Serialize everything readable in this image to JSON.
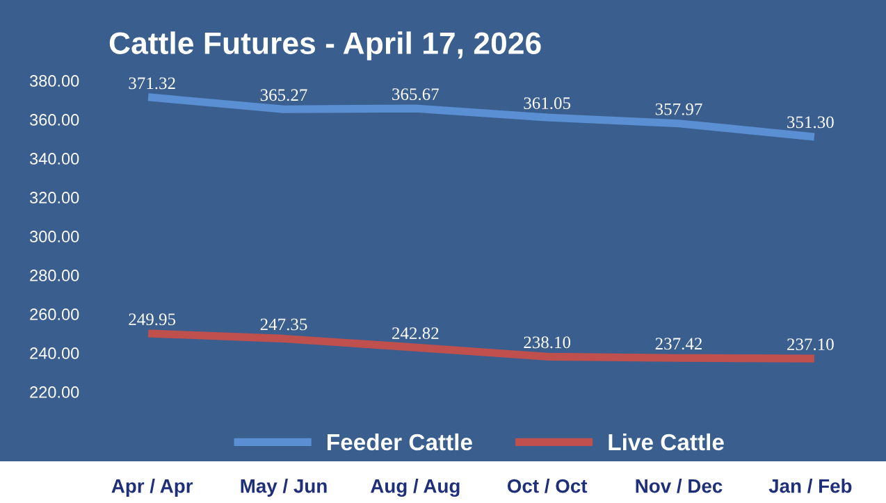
{
  "chart_data": {
    "type": "line",
    "title": "Cattle Futures - April 17, 2026",
    "categories": [
      "Apr / Apr",
      "May / Jun",
      "Aug / Aug",
      "Oct / Oct",
      "Nov / Dec",
      "Jan / Feb"
    ],
    "series": [
      {
        "name": "Feeder Cattle",
        "color": "#5b8fd3",
        "values": [
          371.32,
          365.27,
          365.67,
          361.05,
          357.97,
          351.3
        ],
        "value_labels": [
          "371.32",
          "365.27",
          "365.67",
          "361.05",
          "357.97",
          "351.30"
        ]
      },
      {
        "name": "Live Cattle",
        "color": "#c0504d",
        "values": [
          249.95,
          247.35,
          242.82,
          238.1,
          237.42,
          237.1
        ],
        "value_labels": [
          "249.95",
          "247.35",
          "242.82",
          "238.10",
          "237.42",
          "237.10"
        ]
      }
    ],
    "ylim": [
      220,
      380
    ],
    "yticks": [
      {
        "value": 220,
        "label": "220.00"
      },
      {
        "value": 240,
        "label": "240.00"
      },
      {
        "value": 260,
        "label": "260.00"
      },
      {
        "value": 280,
        "label": "280.00"
      },
      {
        "value": 300,
        "label": "300.00"
      },
      {
        "value": 320,
        "label": "320.00"
      },
      {
        "value": 340,
        "label": "340.00"
      },
      {
        "value": 360,
        "label": "360.00"
      },
      {
        "value": 380,
        "label": "380.00"
      }
    ],
    "grid": false,
    "legend": "bottom",
    "marker": "none",
    "line_style": "solid"
  }
}
